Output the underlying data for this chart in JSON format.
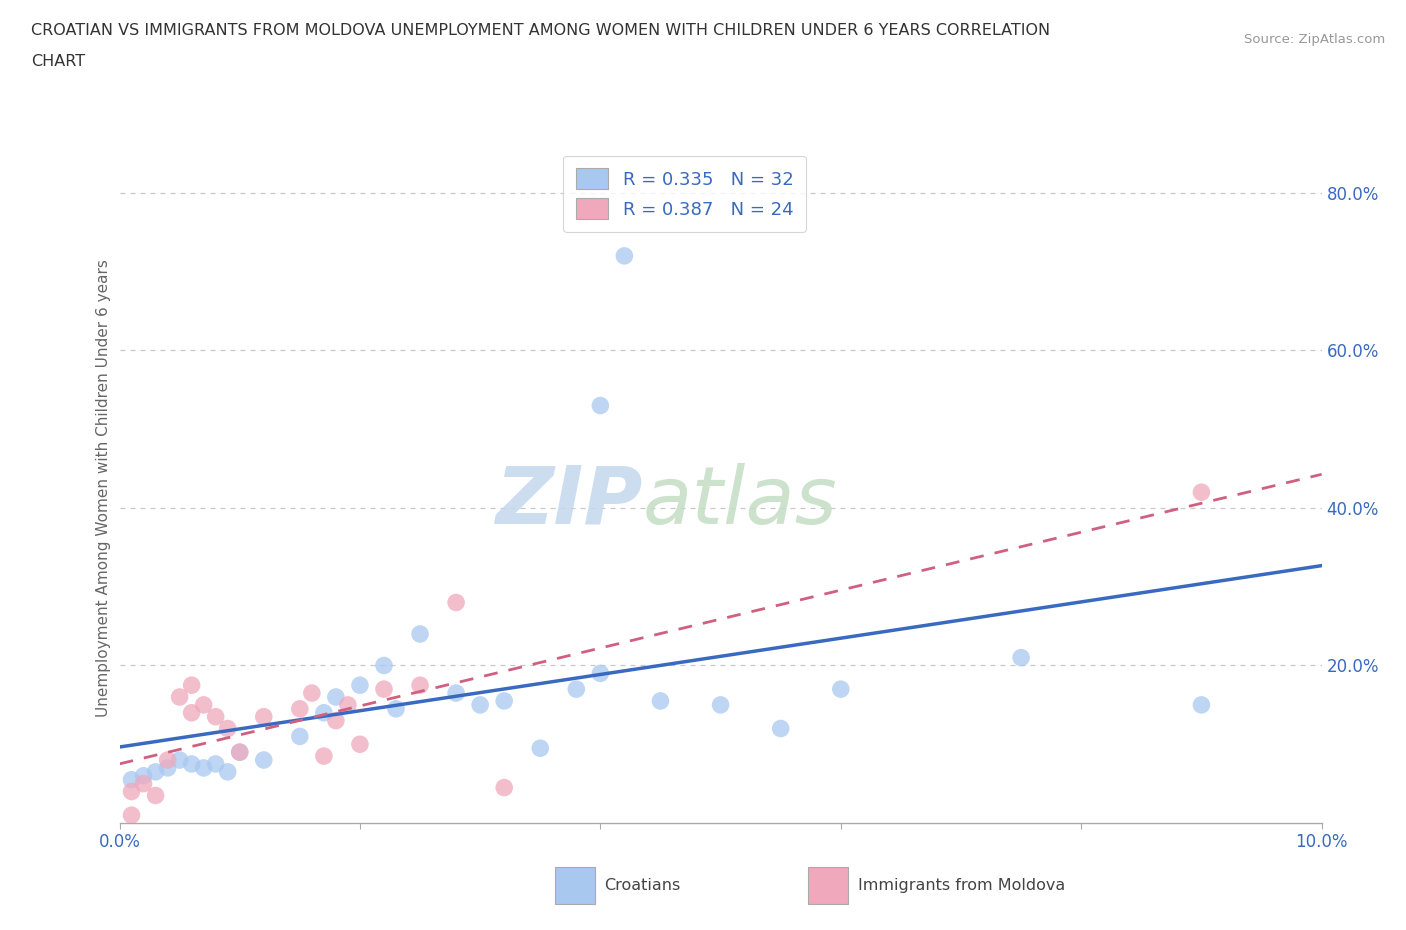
{
  "title_line1": "CROATIAN VS IMMIGRANTS FROM MOLDOVA UNEMPLOYMENT AMONG WOMEN WITH CHILDREN UNDER 6 YEARS CORRELATION",
  "title_line2": "CHART",
  "source": "Source: ZipAtlas.com",
  "ylabel": "Unemployment Among Women with Children Under 6 years",
  "xlim": [
    0.0,
    0.1
  ],
  "ylim": [
    0.0,
    0.85
  ],
  "yticks": [
    0.2,
    0.4,
    0.6,
    0.8
  ],
  "xticks": [
    0.0,
    0.02,
    0.04,
    0.06,
    0.08,
    0.1
  ],
  "ytick_labels": [
    "20.0%",
    "40.0%",
    "60.0%",
    "80.0%"
  ],
  "xtick_labels": [
    "0.0%",
    "",
    "",
    "",
    "",
    "10.0%"
  ],
  "background_color": "#ffffff",
  "grid_color": "#c8c8c8",
  "croatian_color": "#a8c8f0",
  "moldova_color": "#f0a8bc",
  "croatian_line_color": "#3a6abf",
  "moldova_line_color": "#d06080",
  "text_color": "#3a6abf",
  "legend_label1": "R = 0.335   N = 32",
  "legend_label2": "R = 0.387   N = 24",
  "bottom_label1": "Croatians",
  "bottom_label2": "Immigrants from Moldova",
  "croatians_x": [
    0.001,
    0.002,
    0.003,
    0.004,
    0.005,
    0.006,
    0.007,
    0.008,
    0.009,
    0.01,
    0.012,
    0.015,
    0.017,
    0.018,
    0.02,
    0.022,
    0.023,
    0.025,
    0.028,
    0.03,
    0.032,
    0.035,
    0.038,
    0.04,
    0.04,
    0.042,
    0.045,
    0.05,
    0.055,
    0.06,
    0.075,
    0.09
  ],
  "croatians_y": [
    0.055,
    0.06,
    0.065,
    0.07,
    0.08,
    0.075,
    0.07,
    0.075,
    0.065,
    0.09,
    0.08,
    0.11,
    0.14,
    0.16,
    0.175,
    0.2,
    0.145,
    0.24,
    0.165,
    0.15,
    0.155,
    0.095,
    0.17,
    0.19,
    0.53,
    0.72,
    0.155,
    0.15,
    0.12,
    0.17,
    0.21,
    0.15
  ],
  "moldova_x": [
    0.001,
    0.001,
    0.002,
    0.003,
    0.004,
    0.005,
    0.006,
    0.006,
    0.007,
    0.008,
    0.009,
    0.01,
    0.012,
    0.015,
    0.016,
    0.017,
    0.018,
    0.019,
    0.02,
    0.022,
    0.025,
    0.028,
    0.032,
    0.09
  ],
  "moldova_y": [
    0.01,
    0.04,
    0.05,
    0.035,
    0.08,
    0.16,
    0.14,
    0.175,
    0.15,
    0.135,
    0.12,
    0.09,
    0.135,
    0.145,
    0.165,
    0.085,
    0.13,
    0.15,
    0.1,
    0.17,
    0.175,
    0.28,
    0.045,
    0.42
  ]
}
